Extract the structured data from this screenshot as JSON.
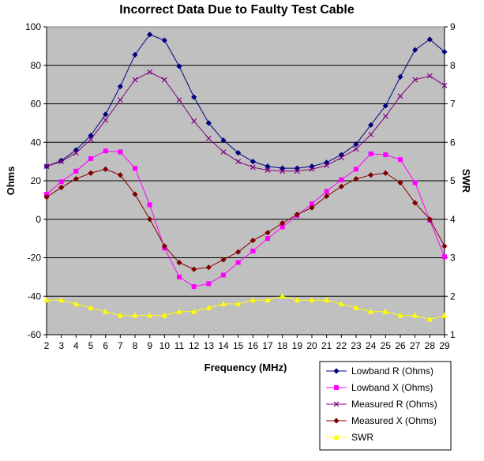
{
  "chart_data": {
    "type": "line",
    "title": "Incorrect Data Due to Faulty Test Cable",
    "xlabel": "Frequency (MHz)",
    "ylabel": "Ohms",
    "y2label": "SWR",
    "ylim": [
      -60,
      100
    ],
    "y_ticks": [
      -60,
      -40,
      -20,
      0,
      20,
      40,
      60,
      80,
      100
    ],
    "y2lim": [
      1,
      9
    ],
    "y2_ticks": [
      1,
      2,
      3,
      4,
      5,
      6,
      7,
      8,
      9
    ],
    "x": [
      2,
      3,
      4,
      5,
      6,
      7,
      8,
      9,
      10,
      11,
      12,
      13,
      14,
      15,
      16,
      17,
      18,
      19,
      20,
      21,
      22,
      23,
      24,
      25,
      26,
      27,
      28,
      29
    ],
    "plot_background": "#c0c0c0",
    "grid": true,
    "legend_position": "bottom-right",
    "series": [
      {
        "name": "Lowband R (Ohms)",
        "axis": "left",
        "color": "#000080",
        "marker": "diamond",
        "values": [
          27.5,
          30.5,
          36,
          43.5,
          54.5,
          69,
          85.5,
          96,
          93,
          79.5,
          63.5,
          50,
          41,
          34.5,
          30,
          27.5,
          26.5,
          26.5,
          27.5,
          29.5,
          33.5,
          39,
          49,
          59,
          74,
          88,
          93.5,
          87
        ]
      },
      {
        "name": "Lowband X (Ohms)",
        "axis": "left",
        "color": "#ff00ff",
        "marker": "square",
        "values": [
          13,
          19.5,
          25,
          31.5,
          35.5,
          35,
          26.5,
          7.5,
          -15,
          -30,
          -35,
          -33.5,
          -29,
          -22.5,
          -16.5,
          -10,
          -4,
          2,
          8,
          14.5,
          20.5,
          26,
          34,
          33.5,
          31,
          19,
          -0.5,
          -19.5
        ]
      },
      {
        "name": "Measured  R (Ohms)",
        "axis": "left",
        "color": "#800080",
        "marker": "x",
        "values": [
          27.5,
          30,
          34.5,
          41.5,
          51.5,
          62,
          72.5,
          76.5,
          72.5,
          62,
          51,
          42,
          35,
          30,
          27,
          25.5,
          25,
          25,
          26,
          28,
          32,
          36.5,
          44,
          53.5,
          64,
          72.5,
          74.5,
          69.5
        ]
      },
      {
        "name": "Measured  X (Ohms)",
        "axis": "left",
        "color": "#800000",
        "marker": "diamond",
        "values": [
          11.5,
          16.5,
          21,
          24,
          26,
          23,
          13,
          0,
          -14,
          -22.5,
          -26,
          -25,
          -21,
          -17,
          -11,
          -7,
          -2,
          2.5,
          6,
          12,
          17,
          21,
          23,
          24,
          19,
          8.5,
          0,
          -14
        ]
      },
      {
        "name": "SWR",
        "axis": "right",
        "color": "#ffff00",
        "marker": "triangle",
        "values": [
          1.9,
          1.9,
          1.8,
          1.7,
          1.6,
          1.5,
          1.5,
          1.5,
          1.5,
          1.6,
          1.6,
          1.7,
          1.8,
          1.8,
          1.9,
          1.9,
          2.0,
          1.9,
          1.9,
          1.9,
          1.8,
          1.7,
          1.6,
          1.6,
          1.5,
          1.5,
          1.4,
          1.5
        ]
      }
    ]
  }
}
